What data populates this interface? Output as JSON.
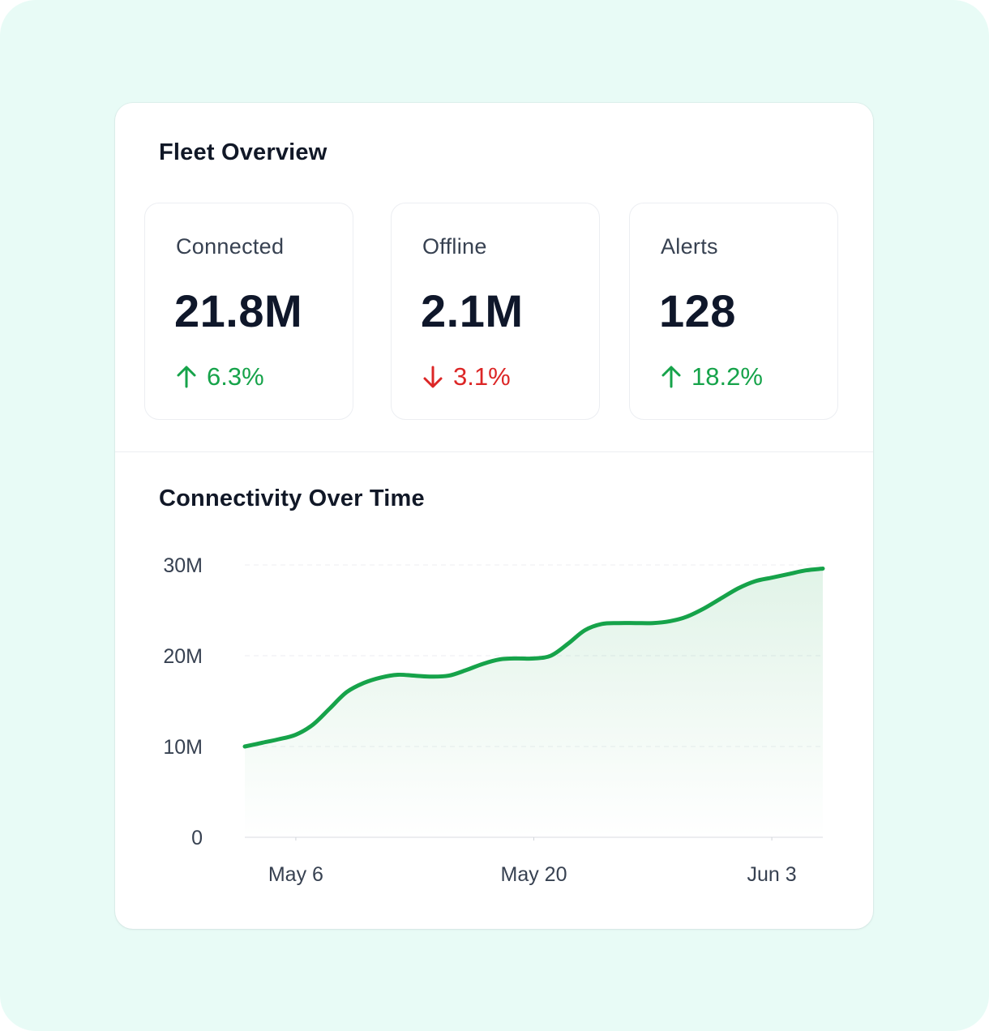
{
  "overview": {
    "title": "Fleet Overview",
    "kpis": [
      {
        "label": "Connected",
        "value": "21.8M",
        "delta": "6.3%",
        "direction": "up",
        "delta_icon": "arrow-up-icon",
        "color": "#16a34a"
      },
      {
        "label": "Offline",
        "value": "2.1M",
        "delta": "3.1%",
        "direction": "down",
        "delta_icon": "arrow-down-icon",
        "color": "#dc2626"
      },
      {
        "label": "Alerts",
        "value": "128",
        "delta": "18.2%",
        "direction": "up",
        "delta_icon": "arrow-up-icon",
        "color": "#16a34a"
      }
    ]
  },
  "chart": {
    "title": "Connectivity Over Time"
  },
  "chart_data": {
    "type": "area",
    "title": "Connectivity Over Time",
    "xlabel": "",
    "ylabel": "",
    "y_tick_labels": [
      "0",
      "10M",
      "20M",
      "30M"
    ],
    "y_ticks": [
      0,
      10,
      20,
      30
    ],
    "ylim": [
      0,
      30
    ],
    "x_tick_labels": [
      "May 6",
      "May 20",
      "Jun 3"
    ],
    "x_ticks": [
      "2024-05-06",
      "2024-05-20",
      "2024-06-03"
    ],
    "xlim": [
      "2024-05-03",
      "2024-06-06"
    ],
    "grid": "horizontal dashed",
    "line_color": "#16a34a",
    "series": [
      {
        "x": [
          "2024-05-03",
          "2024-05-04",
          "2024-05-05",
          "2024-05-06",
          "2024-05-07",
          "2024-05-08",
          "2024-05-09",
          "2024-05-10",
          "2024-05-11",
          "2024-05-12",
          "2024-05-13",
          "2024-05-14",
          "2024-05-15",
          "2024-05-16",
          "2024-05-17",
          "2024-05-18",
          "2024-05-19",
          "2024-05-20",
          "2024-05-21",
          "2024-05-22",
          "2024-05-23",
          "2024-05-24",
          "2024-05-25",
          "2024-05-26",
          "2024-05-27",
          "2024-05-28",
          "2024-05-29",
          "2024-05-30",
          "2024-05-31",
          "2024-06-01",
          "2024-06-02",
          "2024-06-03",
          "2024-06-04",
          "2024-06-05",
          "2024-06-06"
        ],
        "y": [
          10.0,
          10.4,
          10.8,
          11.3,
          12.4,
          14.2,
          16.0,
          17.0,
          17.6,
          17.9,
          17.8,
          17.7,
          17.8,
          18.4,
          19.1,
          19.6,
          19.7,
          19.7,
          20.0,
          21.3,
          22.8,
          23.5,
          23.6,
          23.6,
          23.6,
          23.8,
          24.3,
          25.2,
          26.3,
          27.4,
          28.2,
          28.6,
          29.0,
          29.4,
          29.6
        ]
      }
    ]
  }
}
